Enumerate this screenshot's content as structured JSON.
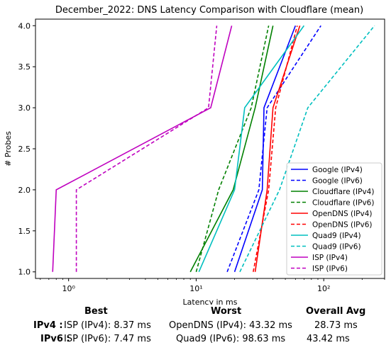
{
  "chart_data": {
    "type": "line",
    "title": "December_2022: DNS Latency Comparison with Cloudflare (mean)",
    "xlabel": "Latency in ms",
    "ylabel": "# Probes",
    "xscale": "log",
    "xlim": [
      0.55,
      300
    ],
    "ylim": [
      0.92,
      4.08
    ],
    "xticks": [
      {
        "value": 1,
        "label": "10⁰"
      },
      {
        "value": 10,
        "label": "10¹"
      },
      {
        "value": 100,
        "label": "10²"
      }
    ],
    "yticks": [
      1.0,
      1.5,
      2.0,
      2.5,
      3.0,
      3.5,
      4.0
    ],
    "ytick_labels": [
      "1.0",
      "1.5",
      "2.0",
      "2.5",
      "3.0",
      "3.5",
      "4.0"
    ],
    "grid": false,
    "legend_position": "lower-right",
    "series": [
      {
        "name": "Google (IPv4)",
        "color": "#0000ff",
        "dash": "solid",
        "points": [
          [
            20.0,
            1
          ],
          [
            33.0,
            2
          ],
          [
            34.0,
            3
          ],
          [
            60.0,
            4
          ]
        ]
      },
      {
        "name": "Google (IPv6)",
        "color": "#0000ff",
        "dash": "dashed",
        "points": [
          [
            17.5,
            1
          ],
          [
            31.0,
            2
          ],
          [
            36.0,
            3
          ],
          [
            95.0,
            4
          ]
        ]
      },
      {
        "name": "Cloudflare (IPv4)",
        "color": "#008000",
        "dash": "solid",
        "points": [
          [
            9.0,
            1
          ],
          [
            19.5,
            2
          ],
          [
            29.0,
            3
          ],
          [
            40.0,
            4
          ]
        ]
      },
      {
        "name": "Cloudflare (IPv6)",
        "color": "#008000",
        "dash": "dashed",
        "points": [
          [
            10.0,
            1
          ],
          [
            15.0,
            2
          ],
          [
            27.0,
            3
          ],
          [
            37.0,
            4
          ]
        ]
      },
      {
        "name": "OpenDNS (IPv4)",
        "color": "#ff0000",
        "dash": "solid",
        "points": [
          [
            29.0,
            1
          ],
          [
            36.0,
            2
          ],
          [
            40.0,
            3
          ],
          [
            65.0,
            4
          ]
        ]
      },
      {
        "name": "OpenDNS (IPv6)",
        "color": "#ff0000",
        "dash": "dashed",
        "points": [
          [
            28.0,
            1
          ],
          [
            37.0,
            2
          ],
          [
            42.0,
            3
          ],
          [
            62.0,
            4
          ]
        ]
      },
      {
        "name": "Quad9 (IPv4)",
        "color": "#00bfbf",
        "dash": "solid",
        "points": [
          [
            10.5,
            1
          ],
          [
            20.0,
            2
          ],
          [
            24.0,
            3
          ],
          [
            70.0,
            4
          ]
        ]
      },
      {
        "name": "Quad9 (IPv6)",
        "color": "#00bfbf",
        "dash": "dashed",
        "points": [
          [
            22.0,
            1
          ],
          [
            45.0,
            2
          ],
          [
            75.0,
            3
          ],
          [
            250.0,
            4
          ]
        ]
      },
      {
        "name": "ISP (IPv4)",
        "color": "#bf00bf",
        "dash": "solid",
        "points": [
          [
            0.75,
            1
          ],
          [
            0.8,
            2
          ],
          [
            13.0,
            3
          ],
          [
            19.0,
            4
          ]
        ]
      },
      {
        "name": "ISP (IPv6)",
        "color": "#bf00bf",
        "dash": "dashed",
        "points": [
          [
            1.15,
            1
          ],
          [
            1.15,
            2
          ],
          [
            12.5,
            3
          ],
          [
            14.5,
            4
          ]
        ]
      }
    ]
  },
  "summary": {
    "headers": {
      "best": "Best",
      "worst": "Worst",
      "overall": "Overall Avg"
    },
    "rows": [
      {
        "label": "IPv4 :",
        "best": "ISP (IPv4): 8.37 ms",
        "worst": "OpenDNS (IPv4): 43.32 ms",
        "overall": "28.73 ms"
      },
      {
        "label": "IPv6 :",
        "best": "ISP (IPv6): 7.47 ms",
        "worst": "Quad9 (IPv6): 98.63 ms",
        "overall": "43.42 ms"
      }
    ]
  }
}
